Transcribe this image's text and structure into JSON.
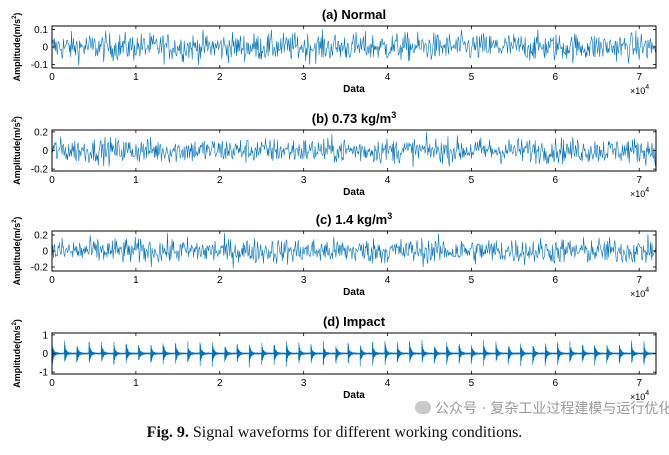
{
  "chart_data": [
    {
      "type": "line",
      "title": "(a) Normal",
      "title_super": "",
      "xlabel": "Data",
      "ylabel": "Amplitude(m/s",
      "ylabel_super": "2",
      "ylabel_close": ")",
      "x_multiplier": "×10",
      "x_multiplier_exp": "4",
      "xlim": [
        0,
        72000
      ],
      "ylim": [
        -0.12,
        0.12
      ],
      "xticks": [
        0,
        1,
        2,
        3,
        4,
        5,
        6,
        7
      ],
      "xtick_labels": [
        "0",
        "1",
        "2",
        "3",
        "4",
        "5",
        "6",
        "7"
      ],
      "yticks": [
        -0.1,
        0,
        0.1
      ],
      "ytick_labels": [
        "-0.1",
        "0",
        "0.1"
      ],
      "signal": "noise",
      "amplitude": 0.095,
      "color": "#0072BD",
      "grid": false
    },
    {
      "type": "line",
      "title": "(b) 0.73 kg/m",
      "title_super": "3",
      "xlabel": "Data",
      "ylabel": "Amplitude(m/s",
      "ylabel_super": "2",
      "ylabel_close": ")",
      "x_multiplier": "×10",
      "x_multiplier_exp": "4",
      "xlim": [
        0,
        72000
      ],
      "ylim": [
        -0.22,
        0.22
      ],
      "xticks": [
        0,
        1,
        2,
        3,
        4,
        5,
        6,
        7
      ],
      "xtick_labels": [
        "0",
        "1",
        "2",
        "3",
        "4",
        "5",
        "6",
        "7"
      ],
      "yticks": [
        -0.2,
        0,
        0.2
      ],
      "ytick_labels": [
        "-0.2",
        "0",
        "0.2"
      ],
      "signal": "noise",
      "amplitude": 0.16,
      "color": "#0072BD",
      "grid": false
    },
    {
      "type": "line",
      "title": "(c) 1.4 kg/m",
      "title_super": "3",
      "xlabel": "Data",
      "ylabel": "Amplitude(m/s",
      "ylabel_super": "2",
      "ylabel_close": ")",
      "x_multiplier": "×10",
      "x_multiplier_exp": "4",
      "xlim": [
        0,
        72000
      ],
      "ylim": [
        -0.25,
        0.25
      ],
      "xticks": [
        0,
        1,
        2,
        3,
        4,
        5,
        6,
        7
      ],
      "xtick_labels": [
        "0",
        "1",
        "2",
        "3",
        "4",
        "5",
        "6",
        "7"
      ],
      "yticks": [
        -0.2,
        0,
        0.2
      ],
      "ytick_labels": [
        "-0.2",
        "0",
        "0.2"
      ],
      "signal": "noise",
      "amplitude": 0.19,
      "color": "#0072BD",
      "grid": false
    },
    {
      "type": "line",
      "title": "(d) Impact",
      "title_super": "",
      "xlabel": "Data",
      "ylabel": "Amplitude(m/s",
      "ylabel_super": "2",
      "ylabel_close": ")",
      "x_multiplier": "×10",
      "x_multiplier_exp": "4",
      "xlim": [
        0,
        72000
      ],
      "ylim": [
        -1.1,
        1.1
      ],
      "xticks": [
        0,
        1,
        2,
        3,
        4,
        5,
        6,
        7
      ],
      "xtick_labels": [
        "0",
        "1",
        "2",
        "3",
        "4",
        "5",
        "6",
        "7"
      ],
      "yticks": [
        -1,
        0,
        1
      ],
      "ytick_labels": [
        "-1",
        "0",
        "1"
      ],
      "signal": "impact",
      "impact_count": 49,
      "impact_peak": 0.75,
      "color": "#0072BD",
      "grid": false
    }
  ],
  "caption": {
    "label": "Fig. 9.",
    "text": "Signal waveforms for different working conditions."
  },
  "watermark": "公众号 · 复杂工业过程建模与运行优化控制"
}
